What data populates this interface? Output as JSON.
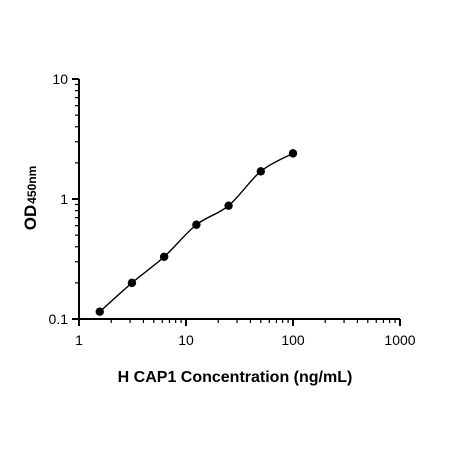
{
  "chart_data": {
    "type": "scatter",
    "xlabel": "H CAP1 Concentration (ng/mL)",
    "ylabel_main": "OD",
    "ylabel_sub": "450nm",
    "x_scale": "log",
    "y_scale": "log",
    "xlim": [
      1,
      1000
    ],
    "ylim": [
      0.1,
      10
    ],
    "x_ticks": [
      1,
      10,
      100,
      1000
    ],
    "x_tick_labels": [
      "1",
      "10",
      "100",
      "1000"
    ],
    "y_ticks": [
      0.1,
      1,
      10
    ],
    "y_tick_labels": [
      "0.1",
      "1",
      "10"
    ],
    "grid": false,
    "points": [
      {
        "x": 1.5625,
        "y": 0.115
      },
      {
        "x": 3.125,
        "y": 0.2
      },
      {
        "x": 6.25,
        "y": 0.33
      },
      {
        "x": 12.5,
        "y": 0.61
      },
      {
        "x": 25,
        "y": 0.88
      },
      {
        "x": 50,
        "y": 1.7
      },
      {
        "x": 100,
        "y": 2.4
      }
    ],
    "fit_curve": true
  }
}
